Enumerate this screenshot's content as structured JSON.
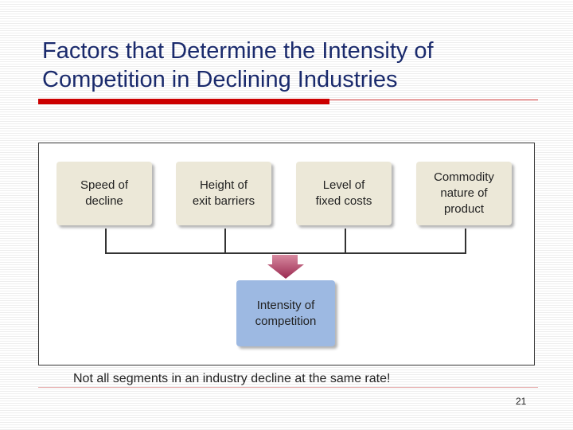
{
  "slide": {
    "title": "Factors that Determine the Intensity of Competition in Declining Industries",
    "note": "Not all segments in an industry decline at the same rate!",
    "page_number": "21"
  },
  "diagram": {
    "factors": [
      {
        "label": "Speed of\ndecline"
      },
      {
        "label": "Height of\nexit barriers"
      },
      {
        "label": "Level of\nfixed costs"
      },
      {
        "label": "Commodity\nnature of\nproduct"
      }
    ],
    "result": {
      "label": "Intensity of\ncompetition"
    }
  },
  "colors": {
    "title": "#1a2a6c",
    "accent_rule": "#cc0000",
    "factor_box": "#ece8d8",
    "result_box": "#9db9e2",
    "arrow": "#b04a6a"
  }
}
